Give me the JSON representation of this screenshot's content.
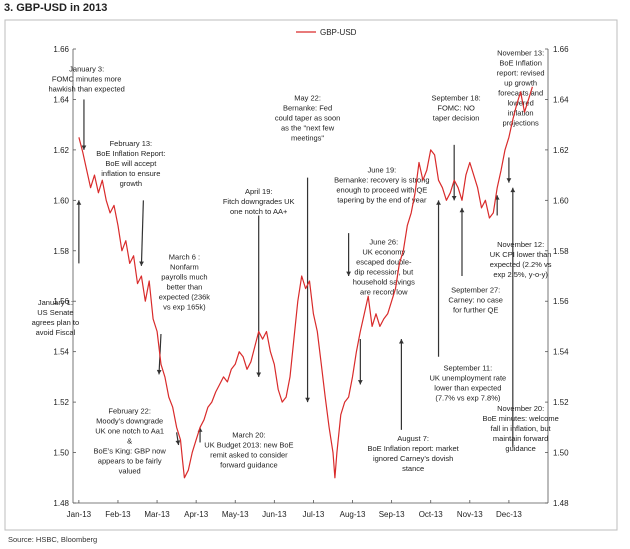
{
  "title": "3. GBP-USD in 2013",
  "source": "Source: HSBC, Bloomberg",
  "chart_data": {
    "type": "line",
    "title": "3. GBP-USD in 2013",
    "legend": "GBP-USD",
    "legend_position": "top-center",
    "grid": false,
    "ylim": [
      1.48,
      1.66
    ],
    "y_ticks": [
      "1.48",
      "1.50",
      "1.52",
      "1.54",
      "1.56",
      "1.58",
      "1.60",
      "1.62",
      "1.64",
      "1.66"
    ],
    "x_ticks": [
      "Jan-13",
      "Feb-13",
      "Mar-13",
      "Apr-13",
      "May-13",
      "Jun-13",
      "Jul-13",
      "Aug-13",
      "Sep-13",
      "Oct-13",
      "Nov-13",
      "Dec-13"
    ],
    "series": [
      {
        "name": "GBP-USD",
        "color": "#d92b2b",
        "points": [
          [
            0.0,
            1.625
          ],
          [
            0.1,
            1.619
          ],
          [
            0.2,
            1.612
          ],
          [
            0.3,
            1.605
          ],
          [
            0.4,
            1.61
          ],
          [
            0.5,
            1.603
          ],
          [
            0.6,
            1.608
          ],
          [
            0.7,
            1.6
          ],
          [
            0.8,
            1.595
          ],
          [
            0.9,
            1.598
          ],
          [
            1.0,
            1.59
          ],
          [
            1.1,
            1.58
          ],
          [
            1.2,
            1.584
          ],
          [
            1.3,
            1.575
          ],
          [
            1.4,
            1.578
          ],
          [
            1.5,
            1.567
          ],
          [
            1.6,
            1.57
          ],
          [
            1.7,
            1.56
          ],
          [
            1.8,
            1.568
          ],
          [
            1.9,
            1.553
          ],
          [
            2.0,
            1.548
          ],
          [
            2.1,
            1.535
          ],
          [
            2.2,
            1.53
          ],
          [
            2.3,
            1.522
          ],
          [
            2.4,
            1.518
          ],
          [
            2.5,
            1.51
          ],
          [
            2.6,
            1.505
          ],
          [
            2.65,
            1.497
          ],
          [
            2.7,
            1.49
          ],
          [
            2.8,
            1.493
          ],
          [
            2.9,
            1.5
          ],
          [
            3.0,
            1.505
          ],
          [
            3.1,
            1.51
          ],
          [
            3.2,
            1.513
          ],
          [
            3.3,
            1.518
          ],
          [
            3.4,
            1.52
          ],
          [
            3.5,
            1.524
          ],
          [
            3.6,
            1.527
          ],
          [
            3.7,
            1.53
          ],
          [
            3.8,
            1.528
          ],
          [
            3.9,
            1.533
          ],
          [
            4.0,
            1.535
          ],
          [
            4.1,
            1.54
          ],
          [
            4.2,
            1.538
          ],
          [
            4.3,
            1.533
          ],
          [
            4.4,
            1.536
          ],
          [
            4.5,
            1.542
          ],
          [
            4.6,
            1.548
          ],
          [
            4.7,
            1.545
          ],
          [
            4.8,
            1.548
          ],
          [
            4.9,
            1.54
          ],
          [
            5.0,
            1.535
          ],
          [
            5.1,
            1.525
          ],
          [
            5.2,
            1.52
          ],
          [
            5.3,
            1.522
          ],
          [
            5.4,
            1.53
          ],
          [
            5.5,
            1.545
          ],
          [
            5.6,
            1.56
          ],
          [
            5.7,
            1.57
          ],
          [
            5.8,
            1.565
          ],
          [
            5.9,
            1.568
          ],
          [
            6.0,
            1.555
          ],
          [
            6.1,
            1.548
          ],
          [
            6.2,
            1.535
          ],
          [
            6.3,
            1.522
          ],
          [
            6.4,
            1.51
          ],
          [
            6.5,
            1.5
          ],
          [
            6.55,
            1.49
          ],
          [
            6.6,
            1.5
          ],
          [
            6.7,
            1.515
          ],
          [
            6.8,
            1.52
          ],
          [
            6.9,
            1.522
          ],
          [
            7.0,
            1.53
          ],
          [
            7.1,
            1.54
          ],
          [
            7.2,
            1.548
          ],
          [
            7.3,
            1.555
          ],
          [
            7.4,
            1.562
          ],
          [
            7.5,
            1.55
          ],
          [
            7.6,
            1.555
          ],
          [
            7.7,
            1.55
          ],
          [
            7.8,
            1.553
          ],
          [
            7.9,
            1.555
          ],
          [
            8.0,
            1.56
          ],
          [
            8.1,
            1.565
          ],
          [
            8.2,
            1.575
          ],
          [
            8.3,
            1.58
          ],
          [
            8.4,
            1.59
          ],
          [
            8.5,
            1.595
          ],
          [
            8.6,
            1.603
          ],
          [
            8.7,
            1.615
          ],
          [
            8.8,
            1.608
          ],
          [
            8.9,
            1.612
          ],
          [
            9.0,
            1.62
          ],
          [
            9.1,
            1.618
          ],
          [
            9.2,
            1.608
          ],
          [
            9.3,
            1.605
          ],
          [
            9.4,
            1.6
          ],
          [
            9.5,
            1.603
          ],
          [
            9.6,
            1.608
          ],
          [
            9.7,
            1.605
          ],
          [
            9.8,
            1.6
          ],
          [
            9.9,
            1.61
          ],
          [
            10.0,
            1.615
          ],
          [
            10.1,
            1.61
          ],
          [
            10.2,
            1.605
          ],
          [
            10.3,
            1.597
          ],
          [
            10.4,
            1.6
          ],
          [
            10.5,
            1.593
          ],
          [
            10.6,
            1.595
          ],
          [
            10.7,
            1.605
          ],
          [
            10.8,
            1.612
          ],
          [
            10.9,
            1.62
          ],
          [
            11.0,
            1.625
          ],
          [
            11.1,
            1.632
          ],
          [
            11.2,
            1.638
          ],
          [
            11.3,
            1.643
          ],
          [
            11.4,
            1.635
          ],
          [
            11.5,
            1.64
          ],
          [
            11.6,
            1.645
          ]
        ]
      }
    ],
    "annotations": [
      {
        "text": [
          "January 3:",
          "FOMC minutes more",
          "hawkish than expected"
        ],
        "x": 0.2,
        "y": 1.651,
        "arrow_from": [
          0.13,
          1.64
        ],
        "arrow_to": [
          0.13,
          1.62
        ]
      },
      {
        "text": [
          "February 13:",
          "BoE Inflation Report:",
          "BoE will accept",
          "inflation to ensure",
          "growth"
        ],
        "x": 1.33,
        "y": 1.6215,
        "arrow_from": [
          1.65,
          1.6
        ],
        "arrow_to": [
          1.6,
          1.574
        ]
      },
      {
        "text": [
          "March 6 :",
          "Nonfarm",
          "payrolls much",
          "better than",
          "expected (236k",
          "vs exp 165k)"
        ],
        "x": 2.7,
        "y": 1.5765,
        "arrow_from": [
          2.1,
          1.547
        ],
        "arrow_to": [
          2.05,
          1.531
        ]
      },
      {
        "text": [
          "January 1:",
          "US Senate",
          "agrees plan to",
          "avoid Fiscal"
        ],
        "x": -0.6,
        "y": 1.5585,
        "arrow_from": [
          0.0,
          1.575
        ],
        "arrow_to": [
          0.0,
          1.6
        ]
      },
      {
        "text": [
          "February 22:",
          "Moody’s downgrade",
          "UK one notch to Aa1",
          "&",
          "BoE’s King: GBP now",
          "appears to be fairly",
          "valued"
        ],
        "x": 1.3,
        "y": 1.5155,
        "arrow_from": [
          2.5,
          1.508
        ],
        "arrow_to": [
          2.55,
          1.503
        ]
      },
      {
        "text": [
          "April 19:",
          "Fitch downgrades UK",
          "one notch to AA+"
        ],
        "x": 4.6,
        "y": 1.6025,
        "arrow_from": [
          4.6,
          1.594
        ],
        "arrow_to": [
          4.6,
          1.53
        ]
      },
      {
        "text": [
          "March 20:",
          "UK Budget 2013: new BoE",
          "remit asked to consider",
          "forward guidance"
        ],
        "x": 4.35,
        "y": 1.506,
        "arrow_from": [
          3.1,
          1.504
        ],
        "arrow_to": [
          3.1,
          1.51
        ]
      },
      {
        "text": [
          "May 22:",
          "Bernanke: Fed",
          "could taper as soon",
          "as the \"next few",
          "meetings\""
        ],
        "x": 5.85,
        "y": 1.6395,
        "arrow_from": [
          5.85,
          1.609
        ],
        "arrow_to": [
          5.85,
          1.52
        ]
      },
      {
        "text": [
          "June 19:",
          "Bernanke: recovery is strong",
          "enough to proceed with QE",
          "tapering by the end of year"
        ],
        "x": 7.75,
        "y": 1.611,
        "arrow_from": [
          6.9,
          1.587
        ],
        "arrow_to": [
          6.9,
          1.57
        ]
      },
      {
        "text": [
          "June 26:",
          "UK economy",
          "escaped double-",
          "dip recession, but",
          "household savings",
          "are record low"
        ],
        "x": 7.8,
        "y": 1.5825,
        "arrow_from": [
          7.2,
          1.545
        ],
        "arrow_to": [
          7.2,
          1.527
        ]
      },
      {
        "text": [
          "August 7:",
          "BoE Inflation report: market",
          "ignored Carney’s dovish",
          "stance"
        ],
        "x": 8.55,
        "y": 1.5045,
        "arrow_from": [
          8.25,
          1.509
        ],
        "arrow_to": [
          8.25,
          1.545
        ]
      },
      {
        "text": [
          "September 18:",
          "FOMC: NO",
          "taper decision"
        ],
        "x": 9.65,
        "y": 1.6395,
        "arrow_from": [
          9.6,
          1.622
        ],
        "arrow_to": [
          9.6,
          1.6
        ]
      },
      {
        "text": [
          "November 13:",
          "BoE Inflation",
          "report: revised",
          "up growth",
          "forecasts and",
          "lowered",
          "inflation",
          "projections"
        ],
        "x": 11.3,
        "y": 1.6575,
        "arrow_from": [
          11.0,
          1.617
        ],
        "arrow_to": [
          11.0,
          1.607
        ]
      },
      {
        "text": [
          "November 12:",
          "UK CPI lower than",
          "expected (2.2% vs",
          "exp 2.5%, y-o-y)"
        ],
        "x": 11.3,
        "y": 1.5815,
        "arrow_from": [
          10.7,
          1.594
        ],
        "arrow_to": [
          10.7,
          1.602
        ]
      },
      {
        "text": [
          "September 27:",
          "Carney: no case",
          "for further QE"
        ],
        "x": 10.15,
        "y": 1.5635,
        "arrow_from": [
          9.8,
          1.57
        ],
        "arrow_to": [
          9.8,
          1.597
        ]
      },
      {
        "text": [
          "September 11:",
          "UK unemployment rate",
          "lower than expected",
          "(7.7% vs exp 7.8%)"
        ],
        "x": 9.95,
        "y": 1.5325,
        "arrow_from": [
          9.2,
          1.538
        ],
        "arrow_to": [
          9.2,
          1.6
        ]
      },
      {
        "text": [
          "November 20:",
          "BoE minutes: welcome",
          "fall in inflation, but",
          "maintain forward",
          "guidance"
        ],
        "x": 11.3,
        "y": 1.5165,
        "arrow_from": [
          11.1,
          1.502
        ],
        "arrow_to": [
          11.1,
          1.605
        ]
      }
    ]
  }
}
